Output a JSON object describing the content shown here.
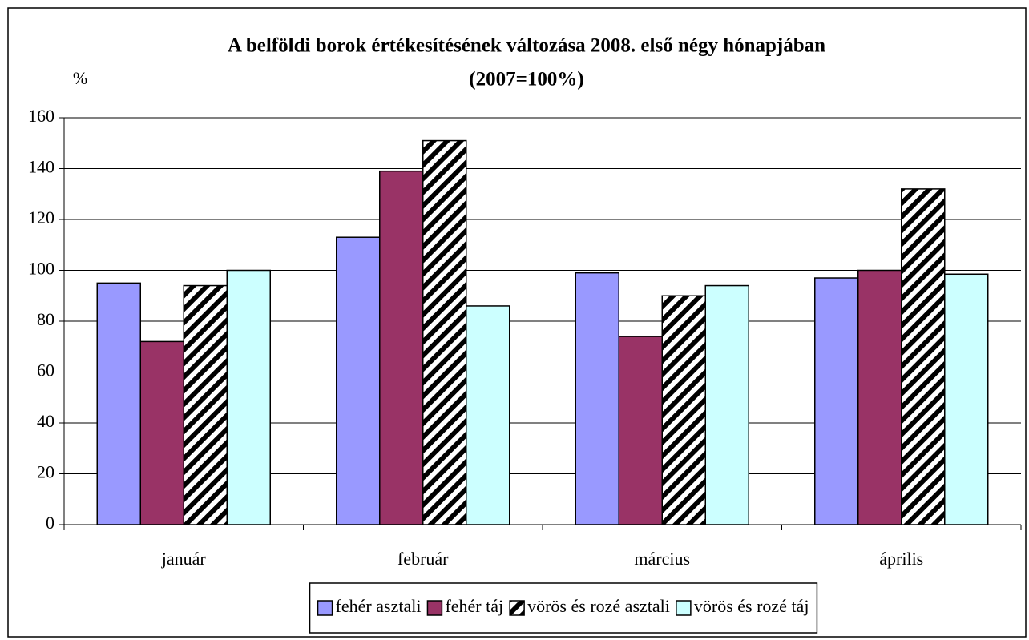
{
  "chart_data": {
    "type": "bar",
    "title": "A belföldi borok értékesítésének változása 2008. első négy hónapjában",
    "subtitle": "(2007=100%)",
    "y_label": "%",
    "categories": [
      "január",
      "február",
      "március",
      "április"
    ],
    "series": [
      {
        "name": "fehér asztali",
        "color": "#9999ff",
        "values": [
          95,
          113,
          99,
          97
        ]
      },
      {
        "name": "fehér táj",
        "color": "#993366",
        "values": [
          72,
          139,
          74,
          100
        ]
      },
      {
        "name": "vörös és rozé asztali",
        "color": "#000000",
        "pattern": "diagonal",
        "values": [
          94,
          151,
          90,
          132
        ]
      },
      {
        "name": "vörös és rozé táj",
        "color": "#ccffff",
        "values": [
          100,
          86,
          94,
          98.5
        ]
      }
    ],
    "ylim": [
      0,
      160
    ],
    "yticks": [
      0,
      20,
      40,
      60,
      80,
      100,
      120,
      140,
      160
    ],
    "grid": true,
    "legend": "bottom"
  }
}
